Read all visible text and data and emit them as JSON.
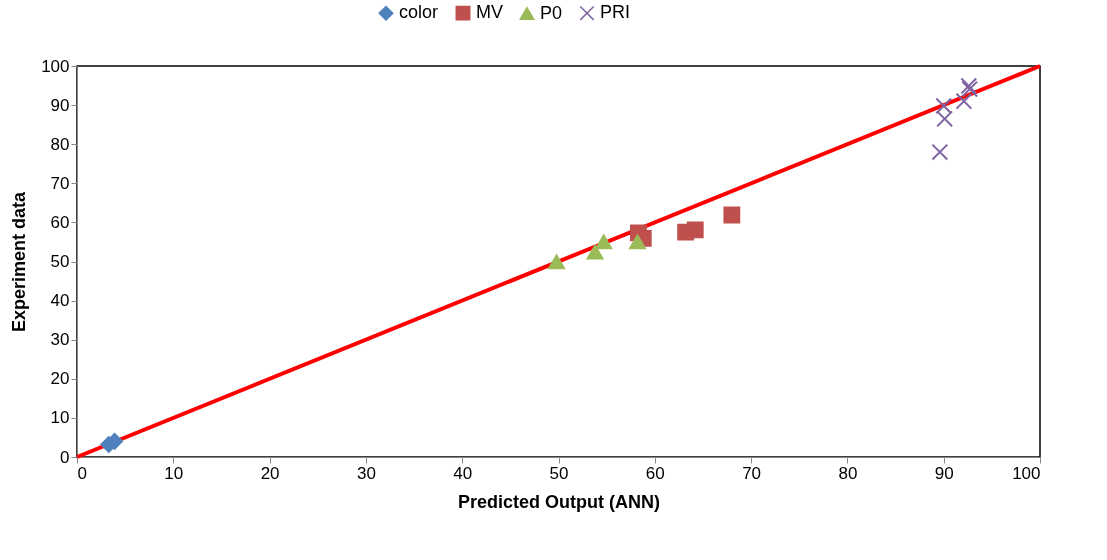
{
  "chart_data": {
    "type": "scatter",
    "xlabel": "Predicted Output (ANN)",
    "ylabel": "Experiment data",
    "xlim": [
      0,
      100
    ],
    "ylim": [
      0,
      100
    ],
    "xticks": [
      0,
      10,
      20,
      30,
      40,
      50,
      60,
      70,
      80,
      90,
      100
    ],
    "yticks": [
      0,
      10,
      20,
      30,
      40,
      50,
      60,
      70,
      80,
      90,
      100
    ],
    "grid": false,
    "legend": "top",
    "series": [
      {
        "name": "color",
        "color": "#4f81bd",
        "marker": "diamond",
        "x": [
          3.3,
          3.9
        ],
        "values": [
          3.2,
          4.0
        ]
      },
      {
        "name": "MV",
        "color": "#c0504d",
        "marker": "square",
        "x": [
          58.3,
          58.8,
          63.2,
          64.2,
          68.0
        ],
        "values": [
          57.3,
          55.9,
          57.5,
          58.1,
          61.9
        ]
      },
      {
        "name": "P0",
        "color": "#9bbb59",
        "marker": "triangle",
        "x": [
          49.8,
          53.8,
          54.7,
          58.2
        ],
        "values": [
          49.9,
          52.4,
          55,
          55
        ]
      },
      {
        "name": "PRI",
        "color": "#8064a2",
        "marker": "cross",
        "x": [
          89.6,
          90.1,
          90.0,
          92.1,
          92.6,
          92.7
        ],
        "values": [
          78,
          86.5,
          89.8,
          91,
          94.9,
          94.1
        ]
      },
      {
        "type": "line",
        "color": "#ff0000",
        "x": [
          0,
          100
        ],
        "values": [
          0,
          100
        ]
      }
    ]
  }
}
